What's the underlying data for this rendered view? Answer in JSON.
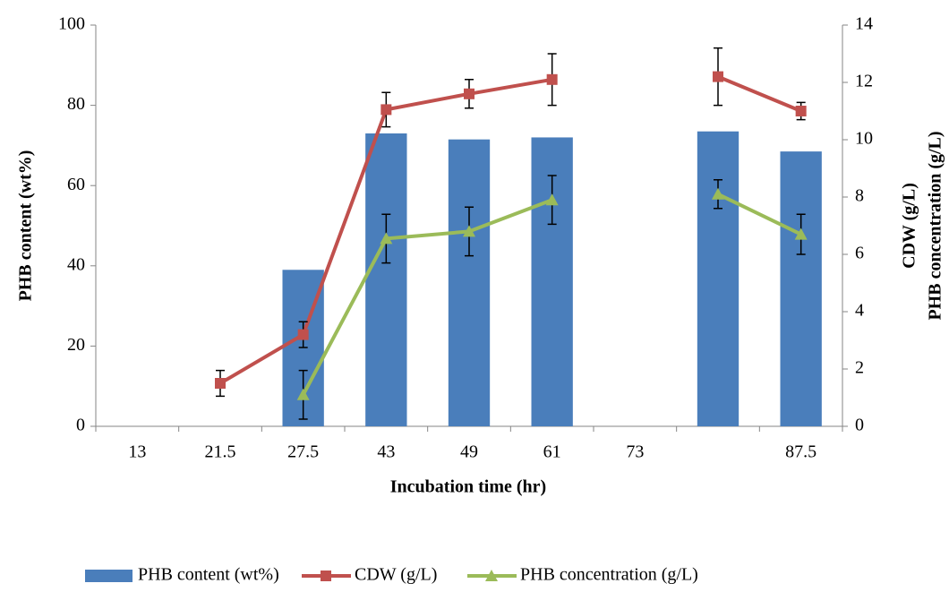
{
  "chart_data": {
    "type": "bar-line",
    "categories": [
      "13",
      "21.5",
      "27.5",
      "43",
      "49",
      "61",
      "73",
      null,
      "87.5"
    ],
    "x_label": "Incubation time (hr)",
    "y_label": "PHB content (wt%)",
    "y2_label": [
      "CDW (g/L)",
      "PHB concentration (g/L)"
    ],
    "ylim": [
      0,
      100
    ],
    "yticks": [
      0,
      20,
      40,
      60,
      80,
      100
    ],
    "y2lim": [
      0,
      14
    ],
    "y2ticks": [
      0,
      2,
      4,
      6,
      8,
      10,
      12,
      14
    ],
    "legend": "bottom",
    "series": [
      {
        "name": "PHB content (wt%)",
        "type": "bar",
        "color": "#4a7ebb",
        "values": [
          null,
          null,
          39,
          73,
          71.5,
          72,
          null,
          73.5,
          68.5
        ]
      },
      {
        "name": "CDW (g/L)",
        "type": "line",
        "marker": "square",
        "axis": "y2",
        "color": "#c0504d",
        "values": [
          null,
          1.5,
          3.2,
          11.05,
          11.6,
          12.1,
          null,
          12.2,
          11.0
        ],
        "errors": [
          null,
          0.45,
          0.45,
          0.6,
          0.5,
          0.9,
          null,
          1.0,
          0.3
        ]
      },
      {
        "name": "PHB concentration (g/L)",
        "type": "line",
        "marker": "triangle",
        "axis": "y2",
        "color": "#9bbb59",
        "values": [
          null,
          null,
          1.1,
          6.55,
          6.8,
          7.9,
          null,
          8.1,
          6.7
        ],
        "errors": [
          null,
          null,
          0.85,
          0.85,
          0.85,
          0.85,
          null,
          0.5,
          0.7
        ]
      }
    ]
  }
}
